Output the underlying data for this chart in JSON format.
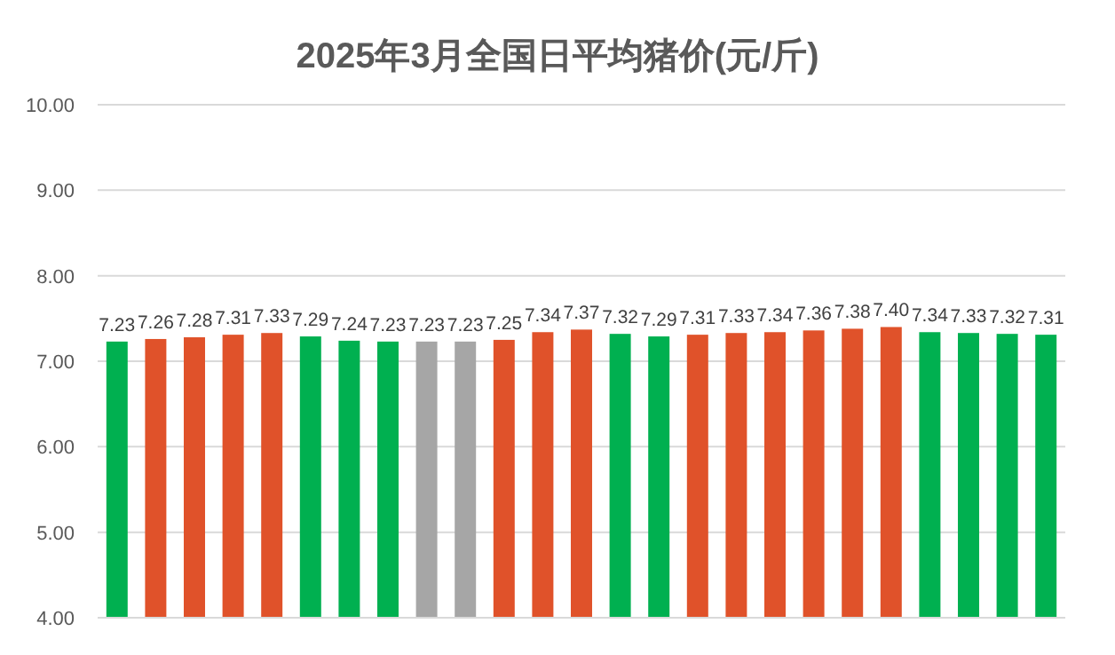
{
  "chart_data": {
    "type": "bar",
    "title": "2025年3月全国日平均猪价(元/斤)",
    "categories": [
      null,
      null,
      null,
      null,
      null,
      null,
      null,
      null,
      null,
      null,
      null,
      null,
      null,
      null,
      null,
      null,
      null,
      null,
      null,
      null,
      null,
      null,
      null,
      null,
      null
    ],
    "values": [
      7.23,
      7.26,
      7.28,
      7.31,
      7.33,
      7.29,
      7.24,
      7.23,
      7.23,
      7.23,
      7.25,
      7.34,
      7.37,
      7.32,
      7.29,
      7.31,
      7.33,
      7.34,
      7.36,
      7.38,
      7.4,
      7.34,
      7.33,
      7.32,
      7.31
    ],
    "value_labels": [
      "7.23",
      "7.26",
      "7.28",
      "7.31",
      "7.33",
      "7.29",
      "7.24",
      "7.23",
      "7.23",
      "7.23",
      "7.25",
      "7.34",
      "7.37",
      "7.32",
      "7.29",
      "7.31",
      "7.33",
      "7.34",
      "7.36",
      "7.38",
      "7.40",
      "7.34",
      "7.33",
      "7.32",
      "7.31"
    ],
    "colors": [
      "#00b050",
      "#e0522a",
      "#e0522a",
      "#e0522a",
      "#e0522a",
      "#00b050",
      "#00b050",
      "#00b050",
      "#a6a6a6",
      "#a6a6a6",
      "#e0522a",
      "#e0522a",
      "#e0522a",
      "#00b050",
      "#00b050",
      "#e0522a",
      "#e0522a",
      "#e0522a",
      "#e0522a",
      "#e0522a",
      "#e0522a",
      "#00b050",
      "#00b050",
      "#00b050",
      "#00b050"
    ],
    "ylim": [
      4,
      10
    ],
    "yticks": [
      {
        "value": 4,
        "label": "4.00"
      },
      {
        "value": 5,
        "label": "5.00"
      },
      {
        "value": 6,
        "label": "6.00"
      },
      {
        "value": 7,
        "label": "7.00"
      },
      {
        "value": 8,
        "label": "8.00"
      },
      {
        "value": 9,
        "label": "9.00"
      },
      {
        "value": 10,
        "label": "10.00"
      }
    ],
    "grid": "y"
  }
}
